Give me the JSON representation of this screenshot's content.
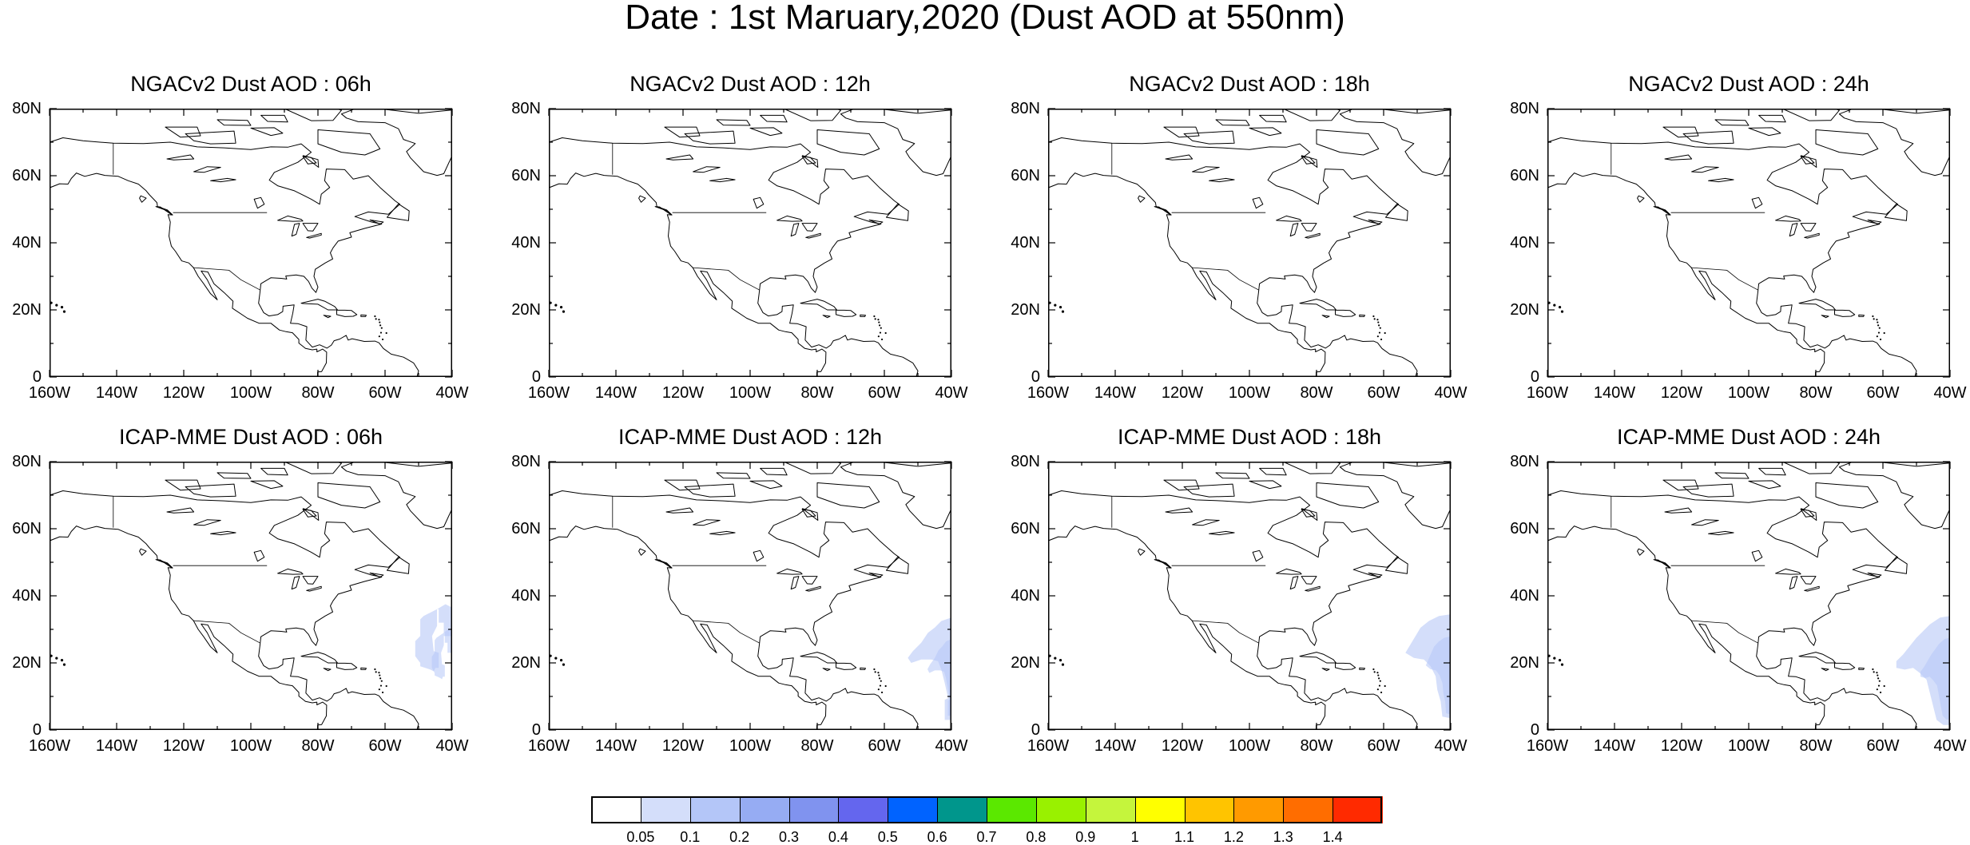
{
  "title": "Date : 1st Maruary,2020 (Dust AOD at 550nm)",
  "x_ticks": [
    "160W",
    "140W",
    "120W",
    "100W",
    "80W",
    "60W",
    "40W"
  ],
  "y_ticks": [
    "80N",
    "60N",
    "40N",
    "20N",
    "0"
  ],
  "panels": [
    {
      "title": "NGACv2 Dust AOD : 06h",
      "plume": "none"
    },
    {
      "title": "NGACv2 Dust AOD : 12h",
      "plume": "none"
    },
    {
      "title": "NGACv2 Dust AOD : 18h",
      "plume": "none"
    },
    {
      "title": "NGACv2 Dust AOD : 24h",
      "plume": "none"
    },
    {
      "title": "ICAP-MME Dust AOD : 06h",
      "plume": "06h"
    },
    {
      "title": "ICAP-MME Dust AOD : 12h",
      "plume": "12h"
    },
    {
      "title": "ICAP-MME Dust AOD : 18h",
      "plume": "18h"
    },
    {
      "title": "ICAP-MME Dust AOD : 24h",
      "plume": "24h"
    }
  ],
  "colorbar": {
    "labels": [
      "0.05",
      "0.1",
      "0.2",
      "0.3",
      "0.4",
      "0.5",
      "0.6",
      "0.7",
      "0.8",
      "0.9",
      "1",
      "1.1",
      "1.2",
      "1.3",
      "1.4"
    ],
    "colors": [
      "#ffffff",
      "#d4defa",
      "#b4c6f8",
      "#96acf3",
      "#8093ef",
      "#6466ee",
      "#0063ff",
      "#00968c",
      "#5be800",
      "#99f100",
      "#c5f53c",
      "#ffff00",
      "#ffc400",
      "#ff9a00",
      "#ff6d00",
      "#ff2a00"
    ]
  },
  "colors": {
    "plume_light": "#d4defa",
    "plume_mid": "#b4c6f8"
  }
}
